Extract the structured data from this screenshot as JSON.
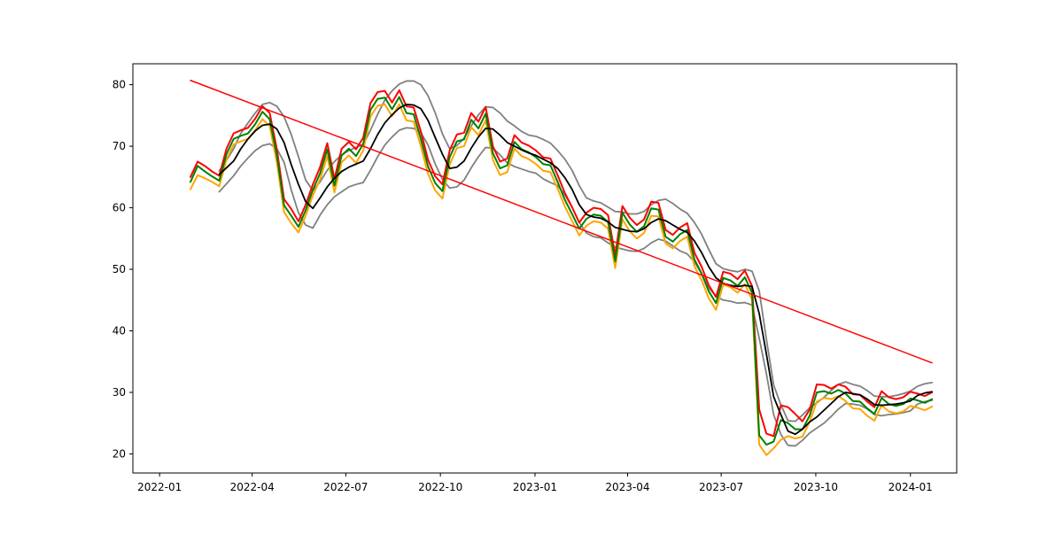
{
  "chart_data": {
    "type": "line",
    "title": "",
    "xlabel": "",
    "ylabel": "",
    "x_ticks": [
      "2022-01",
      "2022-04",
      "2022-07",
      "2022-10",
      "2023-01",
      "2023-04",
      "2023-07",
      "2023-10",
      "2024-01"
    ],
    "y_ticks": [
      20,
      30,
      40,
      50,
      60,
      70,
      80
    ],
    "xlim": [
      "2021-12-06",
      "2024-02-15"
    ],
    "ylim": [
      16.9,
      83.4
    ],
    "grid": false,
    "legend": "none",
    "colors": {
      "high": "#ff0000",
      "low": "#ffa500",
      "close": "#008000",
      "moving_average": "#000000",
      "bands": "#808080",
      "trend": "#ff0000"
    },
    "x_dates": [
      "2022-01-31",
      "2022-02-07",
      "2022-02-14",
      "2022-02-21",
      "2022-02-28",
      "2022-03-07",
      "2022-03-14",
      "2022-03-21",
      "2022-03-28",
      "2022-04-04",
      "2022-04-11",
      "2022-04-18",
      "2022-04-25",
      "2022-05-02",
      "2022-05-09",
      "2022-05-16",
      "2022-05-23",
      "2022-05-30",
      "2022-06-06",
      "2022-06-13",
      "2022-06-20",
      "2022-06-27",
      "2022-07-04",
      "2022-07-11",
      "2022-07-18",
      "2022-07-25",
      "2022-08-01",
      "2022-08-08",
      "2022-08-15",
      "2022-08-22",
      "2022-08-29",
      "2022-09-05",
      "2022-09-12",
      "2022-09-19",
      "2022-09-26",
      "2022-10-03",
      "2022-10-10",
      "2022-10-17",
      "2022-10-24",
      "2022-10-31",
      "2022-11-07",
      "2022-11-14",
      "2022-11-21",
      "2022-11-28",
      "2022-12-05",
      "2022-12-12",
      "2022-12-19",
      "2022-12-26",
      "2023-01-02",
      "2023-01-09",
      "2023-01-16",
      "2023-01-23",
      "2023-01-30",
      "2023-02-06",
      "2023-02-13",
      "2023-02-20",
      "2023-02-27",
      "2023-03-06",
      "2023-03-13",
      "2023-03-20",
      "2023-03-27",
      "2023-04-03",
      "2023-04-10",
      "2023-04-17",
      "2023-04-24",
      "2023-05-01",
      "2023-05-08",
      "2023-05-15",
      "2023-05-22",
      "2023-05-29",
      "2023-06-05",
      "2023-06-12",
      "2023-06-19",
      "2023-06-26",
      "2023-07-03",
      "2023-07-10",
      "2023-07-17",
      "2023-07-24",
      "2023-07-31",
      "2023-08-07",
      "2023-08-14",
      "2023-08-21",
      "2023-08-28",
      "2023-09-04",
      "2023-09-11",
      "2023-09-18",
      "2023-09-25",
      "2023-10-02",
      "2023-10-09",
      "2023-10-16",
      "2023-10-23",
      "2023-10-30",
      "2023-11-06",
      "2023-11-13",
      "2023-11-20",
      "2023-11-27",
      "2023-12-04",
      "2023-12-11",
      "2023-12-18",
      "2023-12-25",
      "2024-01-01",
      "2024-01-08",
      "2024-01-15",
      "2024-01-22"
    ],
    "series": [
      {
        "role": "high",
        "values": [
          65.0,
          67.5,
          66.8,
          65.9,
          65.2,
          69.6,
          72.1,
          72.6,
          73.0,
          74.5,
          76.5,
          75.4,
          69.5,
          61.4,
          59.8,
          57.8,
          60.5,
          63.8,
          66.6,
          70.5,
          64.7,
          69.6,
          70.7,
          69.5,
          71.4,
          77.0,
          78.8,
          79.0,
          77.1,
          79.1,
          76.5,
          76.3,
          72.4,
          67.8,
          65.1,
          63.8,
          69.3,
          71.9,
          72.2,
          75.4,
          74.0,
          76.4,
          70.0,
          67.5,
          68.0,
          71.8,
          70.6,
          70.1,
          69.3,
          68.2,
          68.0,
          65.3,
          62.4,
          60.1,
          57.6,
          59.2,
          60.0,
          59.8,
          58.8,
          52.3,
          60.3,
          58.4,
          57.2,
          58.1,
          61.0,
          60.8,
          56.4,
          55.6,
          56.8,
          57.5,
          52.7,
          50.4,
          47.4,
          45.5,
          49.6,
          49.3,
          48.4,
          49.8,
          47.3,
          27.2,
          23.3,
          22.9,
          27.9,
          27.6,
          26.5,
          25.3,
          27.2,
          31.3,
          31.2,
          30.6,
          31.3,
          30.9,
          29.7,
          29.6,
          28.5,
          27.6,
          30.2,
          29.2,
          28.9,
          29.2,
          30.1,
          29.8,
          29.4,
          30.0
        ]
      },
      {
        "role": "low",
        "values": [
          63.0,
          65.3,
          64.8,
          64.2,
          63.5,
          67.8,
          70.3,
          70.8,
          71.2,
          72.6,
          74.4,
          73.3,
          67.4,
          59.3,
          57.5,
          56.0,
          58.7,
          62.0,
          64.6,
          68.4,
          62.5,
          67.4,
          68.5,
          67.3,
          69.3,
          74.8,
          76.6,
          76.8,
          74.9,
          76.8,
          74.2,
          74.0,
          70.0,
          65.5,
          62.8,
          61.5,
          67.0,
          69.7,
          70.0,
          73.1,
          71.8,
          74.2,
          67.8,
          65.3,
          65.8,
          69.6,
          68.4,
          67.9,
          67.1,
          66.0,
          65.8,
          63.1,
          60.2,
          57.9,
          55.5,
          57.1,
          57.8,
          57.6,
          56.6,
          50.2,
          58.1,
          56.2,
          55.0,
          55.9,
          58.7,
          58.6,
          54.2,
          53.4,
          54.6,
          55.3,
          50.5,
          48.2,
          45.3,
          43.4,
          47.5,
          47.1,
          46.2,
          47.6,
          45.1,
          21.5,
          19.8,
          20.9,
          22.3,
          22.9,
          22.5,
          22.8,
          25.2,
          28.5,
          29.1,
          28.9,
          29.4,
          28.6,
          27.4,
          27.3,
          26.2,
          25.4,
          27.9,
          26.9,
          26.6,
          26.9,
          27.8,
          27.5,
          27.1,
          27.7
        ]
      },
      {
        "role": "close",
        "values": [
          64.2,
          66.8,
          65.9,
          65.1,
          64.4,
          68.7,
          71.2,
          71.7,
          72.1,
          73.6,
          75.6,
          74.4,
          68.5,
          60.4,
          58.7,
          56.9,
          59.6,
          62.9,
          65.6,
          69.5,
          63.6,
          68.5,
          69.6,
          68.4,
          70.4,
          75.9,
          77.7,
          77.9,
          76.0,
          78.0,
          75.4,
          75.2,
          71.2,
          66.7,
          64.0,
          62.7,
          68.2,
          70.8,
          71.1,
          74.3,
          72.9,
          75.3,
          68.9,
          66.4,
          66.9,
          70.7,
          69.5,
          69.0,
          68.2,
          67.1,
          66.9,
          64.2,
          61.3,
          59.0,
          56.6,
          58.2,
          58.9,
          58.7,
          57.7,
          51.3,
          59.2,
          57.3,
          56.1,
          57.0,
          59.9,
          59.7,
          55.3,
          54.5,
          55.7,
          56.4,
          51.6,
          49.3,
          46.4,
          44.5,
          48.6,
          48.2,
          47.3,
          48.7,
          46.2,
          23.0,
          21.5,
          22.0,
          25.5,
          25.0,
          24.0,
          24.0,
          26.2,
          30.0,
          30.2,
          29.8,
          30.4,
          29.8,
          28.6,
          28.5,
          27.4,
          26.5,
          29.1,
          28.1,
          27.8,
          28.1,
          29.0,
          28.7,
          28.3,
          28.9
        ]
      },
      {
        "role": "moving_average",
        "values": [
          null,
          null,
          null,
          null,
          65.4,
          66.5,
          67.6,
          69.6,
          71.2,
          72.5,
          73.4,
          73.6,
          72.8,
          70.6,
          67.0,
          63.8,
          61.0,
          59.9,
          61.6,
          63.4,
          64.8,
          65.9,
          66.6,
          67.1,
          67.6,
          69.6,
          71.9,
          73.8,
          75.1,
          76.2,
          76.8,
          76.7,
          76.1,
          74.2,
          71.4,
          68.7,
          66.4,
          66.6,
          67.6,
          69.7,
          71.5,
          72.9,
          72.8,
          71.8,
          70.6,
          70.0,
          69.4,
          68.9,
          68.5,
          67.9,
          67.3,
          66.4,
          64.9,
          63.0,
          60.5,
          58.9,
          58.5,
          58.3,
          57.7,
          56.8,
          56.5,
          56.2,
          56.1,
          56.6,
          57.6,
          58.2,
          57.9,
          57.2,
          56.5,
          56.0,
          54.6,
          52.7,
          50.4,
          48.6,
          47.7,
          47.4,
          47.2,
          47.4,
          47.2,
          42.8,
          36.2,
          29.3,
          26.4,
          23.7,
          23.2,
          24.0,
          25.2,
          26.0,
          27.1,
          28.2,
          29.3,
          30.0,
          29.8,
          29.6,
          28.9,
          28.0,
          27.9,
          28.0,
          28.1,
          28.3,
          28.6,
          29.5,
          29.9,
          30.1
        ]
      },
      {
        "role": "upper_band",
        "values": [
          null,
          null,
          null,
          null,
          66.0,
          67.7,
          69.6,
          72.1,
          73.8,
          75.4,
          76.8,
          77.1,
          76.5,
          74.8,
          71.9,
          68.3,
          64.5,
          62.8,
          64.2,
          66.1,
          67.5,
          68.6,
          69.3,
          69.8,
          70.3,
          72.6,
          75.2,
          77.5,
          79.0,
          80.1,
          80.6,
          80.6,
          80.0,
          78.2,
          75.4,
          72.0,
          69.6,
          70.1,
          71.3,
          73.3,
          75.1,
          76.4,
          76.3,
          75.4,
          74.1,
          73.3,
          72.4,
          71.8,
          71.6,
          71.1,
          70.5,
          69.3,
          67.9,
          66.1,
          63.6,
          61.6,
          61.1,
          60.8,
          60.1,
          59.4,
          59.3,
          59.0,
          59.0,
          59.4,
          60.5,
          61.2,
          61.4,
          60.7,
          59.8,
          59.1,
          57.6,
          55.7,
          53.2,
          50.9,
          50.1,
          49.8,
          49.6,
          50.0,
          49.7,
          46.5,
          38.6,
          31.2,
          28.0,
          25.4,
          25.3,
          26.3,
          27.5,
          28.3,
          29.2,
          30.3,
          31.3,
          31.7,
          31.3,
          31.0,
          30.3,
          29.4,
          29.3,
          29.3,
          29.5,
          29.8,
          30.2,
          31.0,
          31.4,
          31.6
        ]
      },
      {
        "role": "lower_band",
        "values": [
          null,
          null,
          null,
          null,
          62.6,
          63.9,
          65.2,
          66.8,
          68.1,
          69.3,
          70.1,
          70.4,
          69.6,
          67.4,
          62.9,
          59.2,
          57.2,
          56.7,
          58.8,
          60.5,
          61.8,
          62.6,
          63.4,
          63.8,
          64.1,
          66.1,
          68.3,
          70.2,
          71.5,
          72.6,
          73.0,
          72.9,
          72.2,
          70.2,
          67.1,
          64.6,
          63.2,
          63.4,
          64.5,
          66.5,
          68.3,
          69.8,
          69.7,
          68.6,
          67.3,
          66.7,
          66.3,
          65.9,
          65.6,
          64.7,
          64.1,
          63.6,
          62.1,
          60.1,
          57.6,
          55.9,
          55.3,
          55.1,
          54.3,
          53.6,
          53.3,
          53.0,
          52.9,
          53.4,
          54.3,
          54.9,
          54.6,
          53.8,
          53.0,
          52.5,
          51.2,
          49.3,
          47.0,
          45.6,
          45.0,
          44.8,
          44.5,
          44.6,
          44.2,
          38.8,
          33.0,
          26.4,
          23.2,
          21.4,
          21.3,
          22.2,
          23.4,
          24.2,
          25.0,
          26.1,
          27.3,
          28.2,
          28.1,
          27.9,
          27.3,
          26.4,
          26.2,
          26.4,
          26.5,
          26.7,
          27.0,
          28.1,
          28.5,
          28.7
        ]
      },
      {
        "role": "trend",
        "x": [
          "2022-01-31",
          "2024-01-22"
        ],
        "values": [
          80.7,
          34.8
        ]
      }
    ]
  }
}
